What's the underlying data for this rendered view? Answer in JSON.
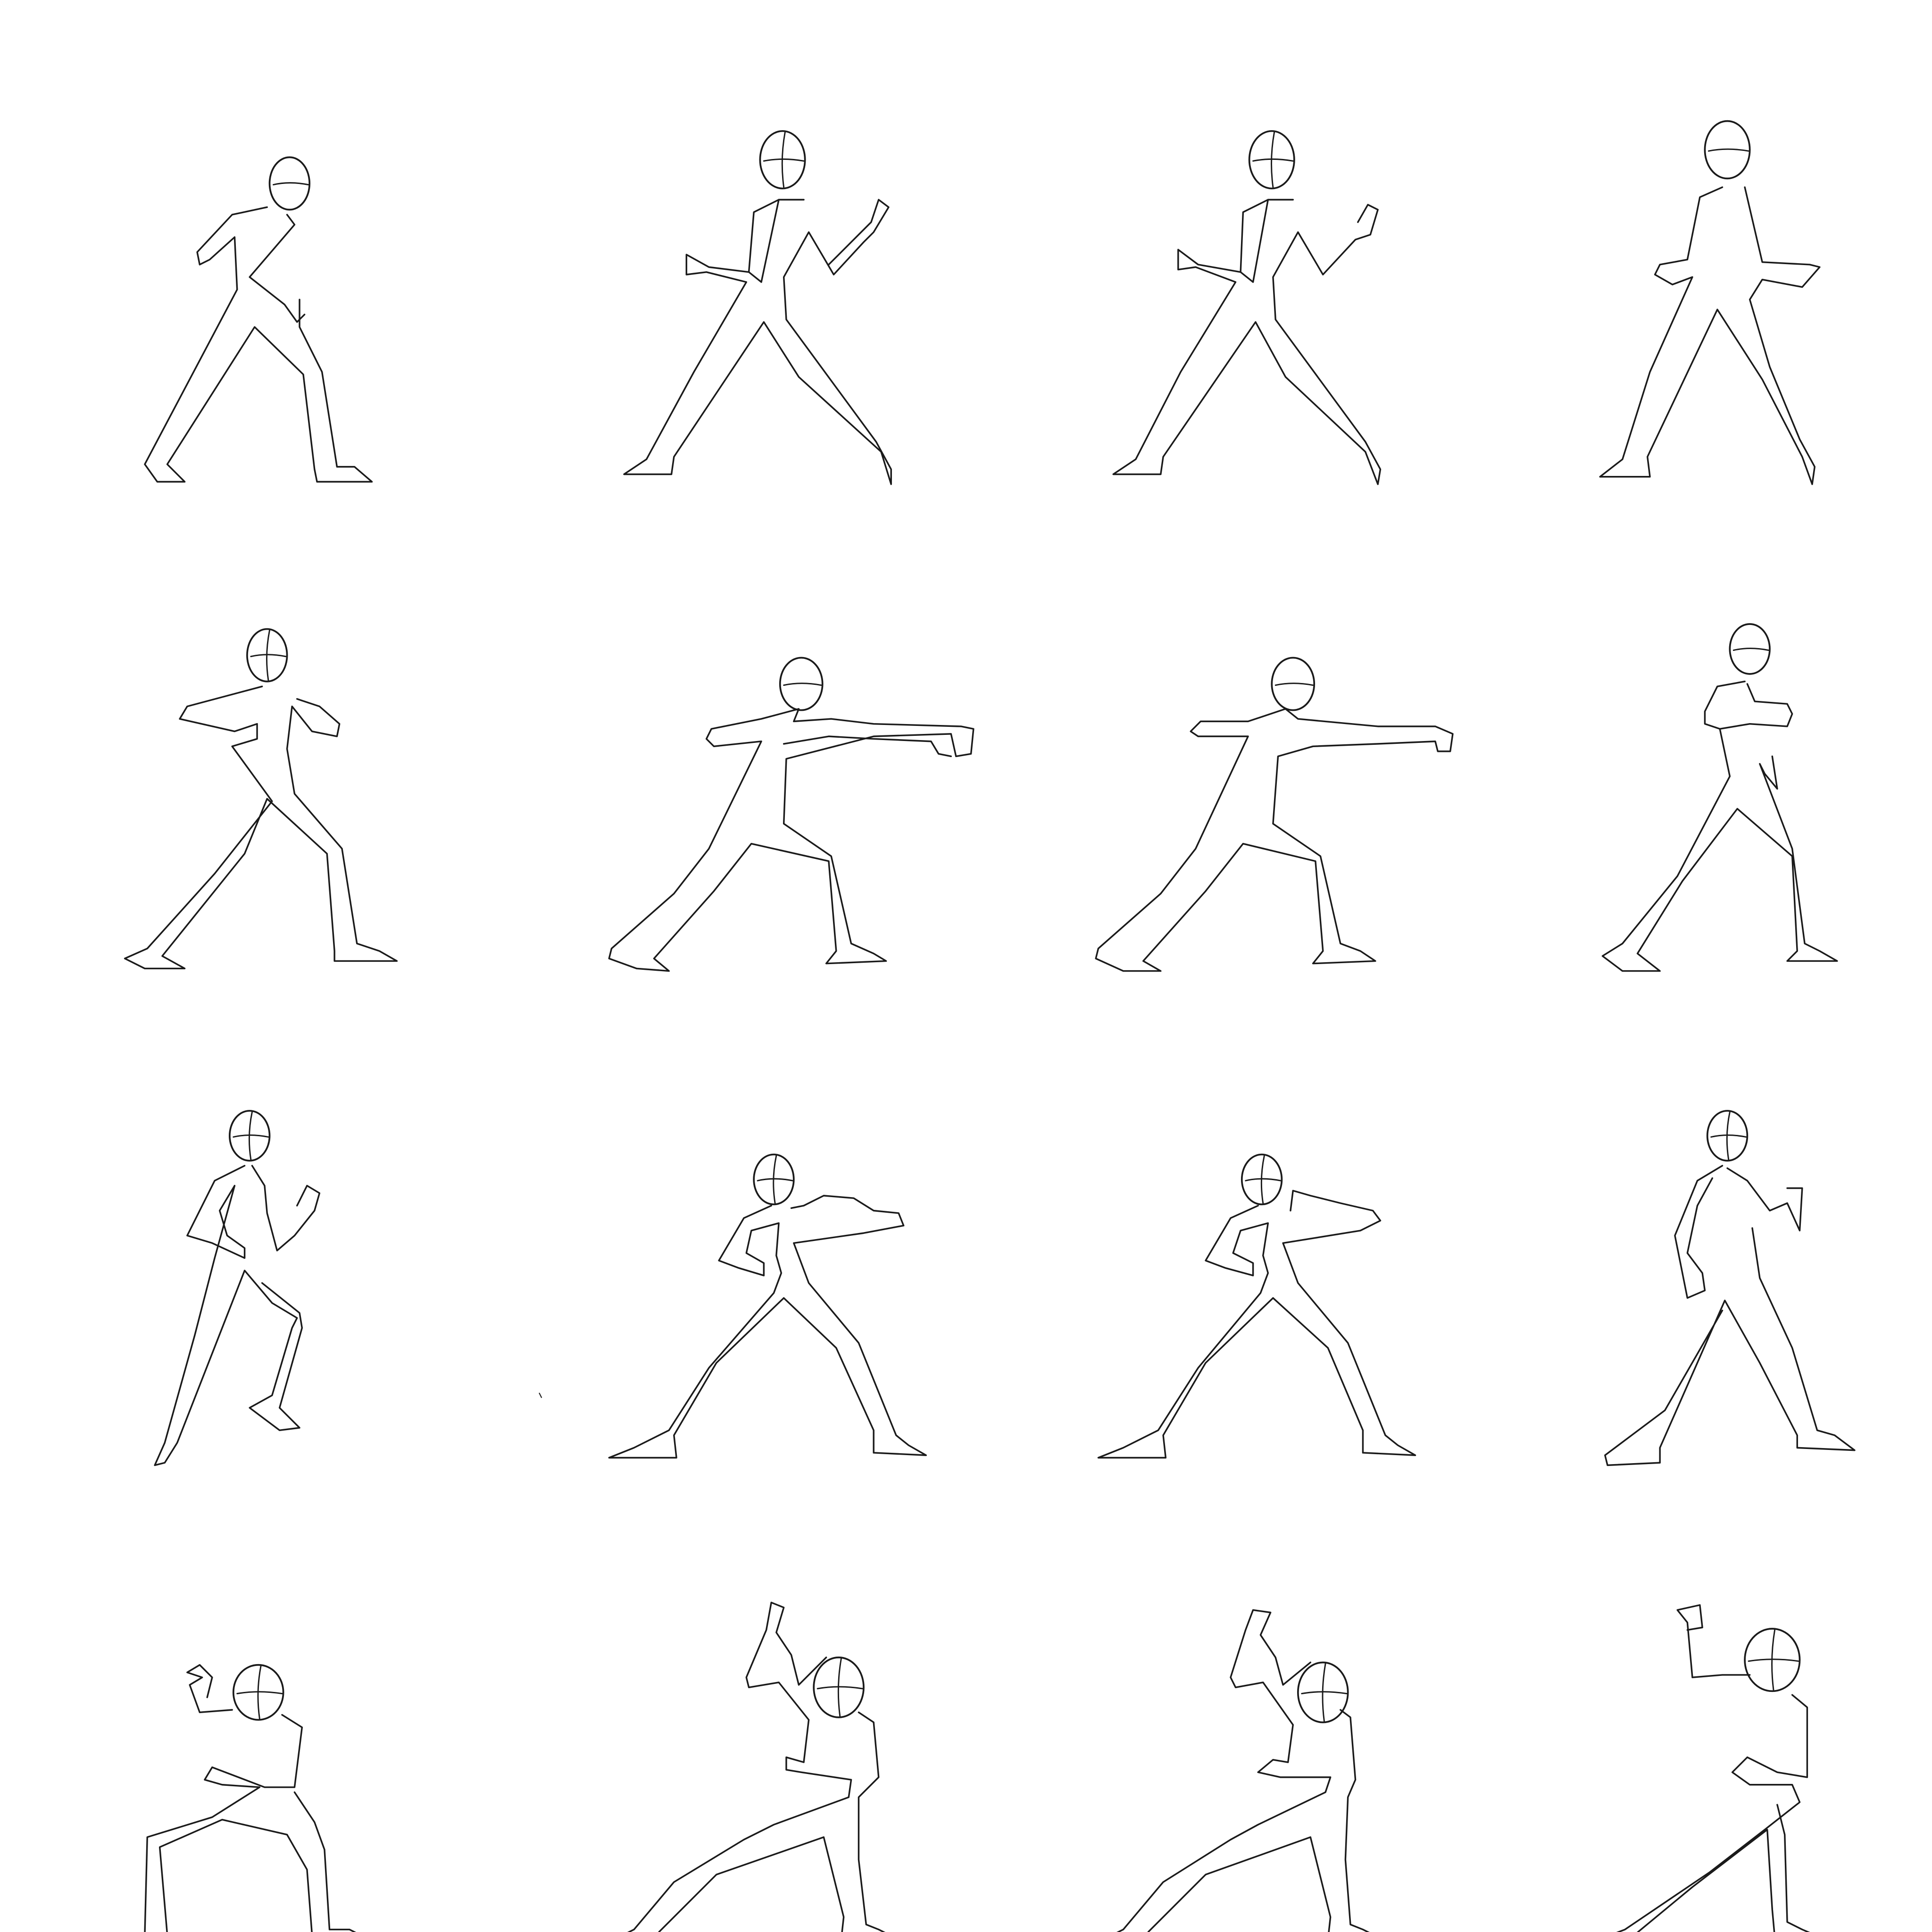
{
  "sheet": {
    "background": "#ffffff",
    "line_color": "#1a1a1a",
    "rows": 4,
    "columns": 4
  },
  "frames": [
    {
      "pose": "walk-forward"
    },
    {
      "pose": "ready-fists-up-blur"
    },
    {
      "pose": "ready-fists-up"
    },
    {
      "pose": "fists-low-wide-stance"
    },
    {
      "pose": "guard-cross-arms"
    },
    {
      "pose": "straight-punch-smear"
    },
    {
      "pose": "straight-punch-extended"
    },
    {
      "pose": "recover-guard"
    },
    {
      "pose": "step-back-guard"
    },
    {
      "pose": "hook-punch-smear"
    },
    {
      "pose": "hook-punch-follow"
    },
    {
      "pose": "stance-reset"
    },
    {
      "pose": "crouch-arm-raised"
    },
    {
      "pose": "lunge-arm-raised"
    },
    {
      "pose": "lunge-arm-raised-2"
    },
    {
      "pose": "rise-arm-raised"
    }
  ]
}
